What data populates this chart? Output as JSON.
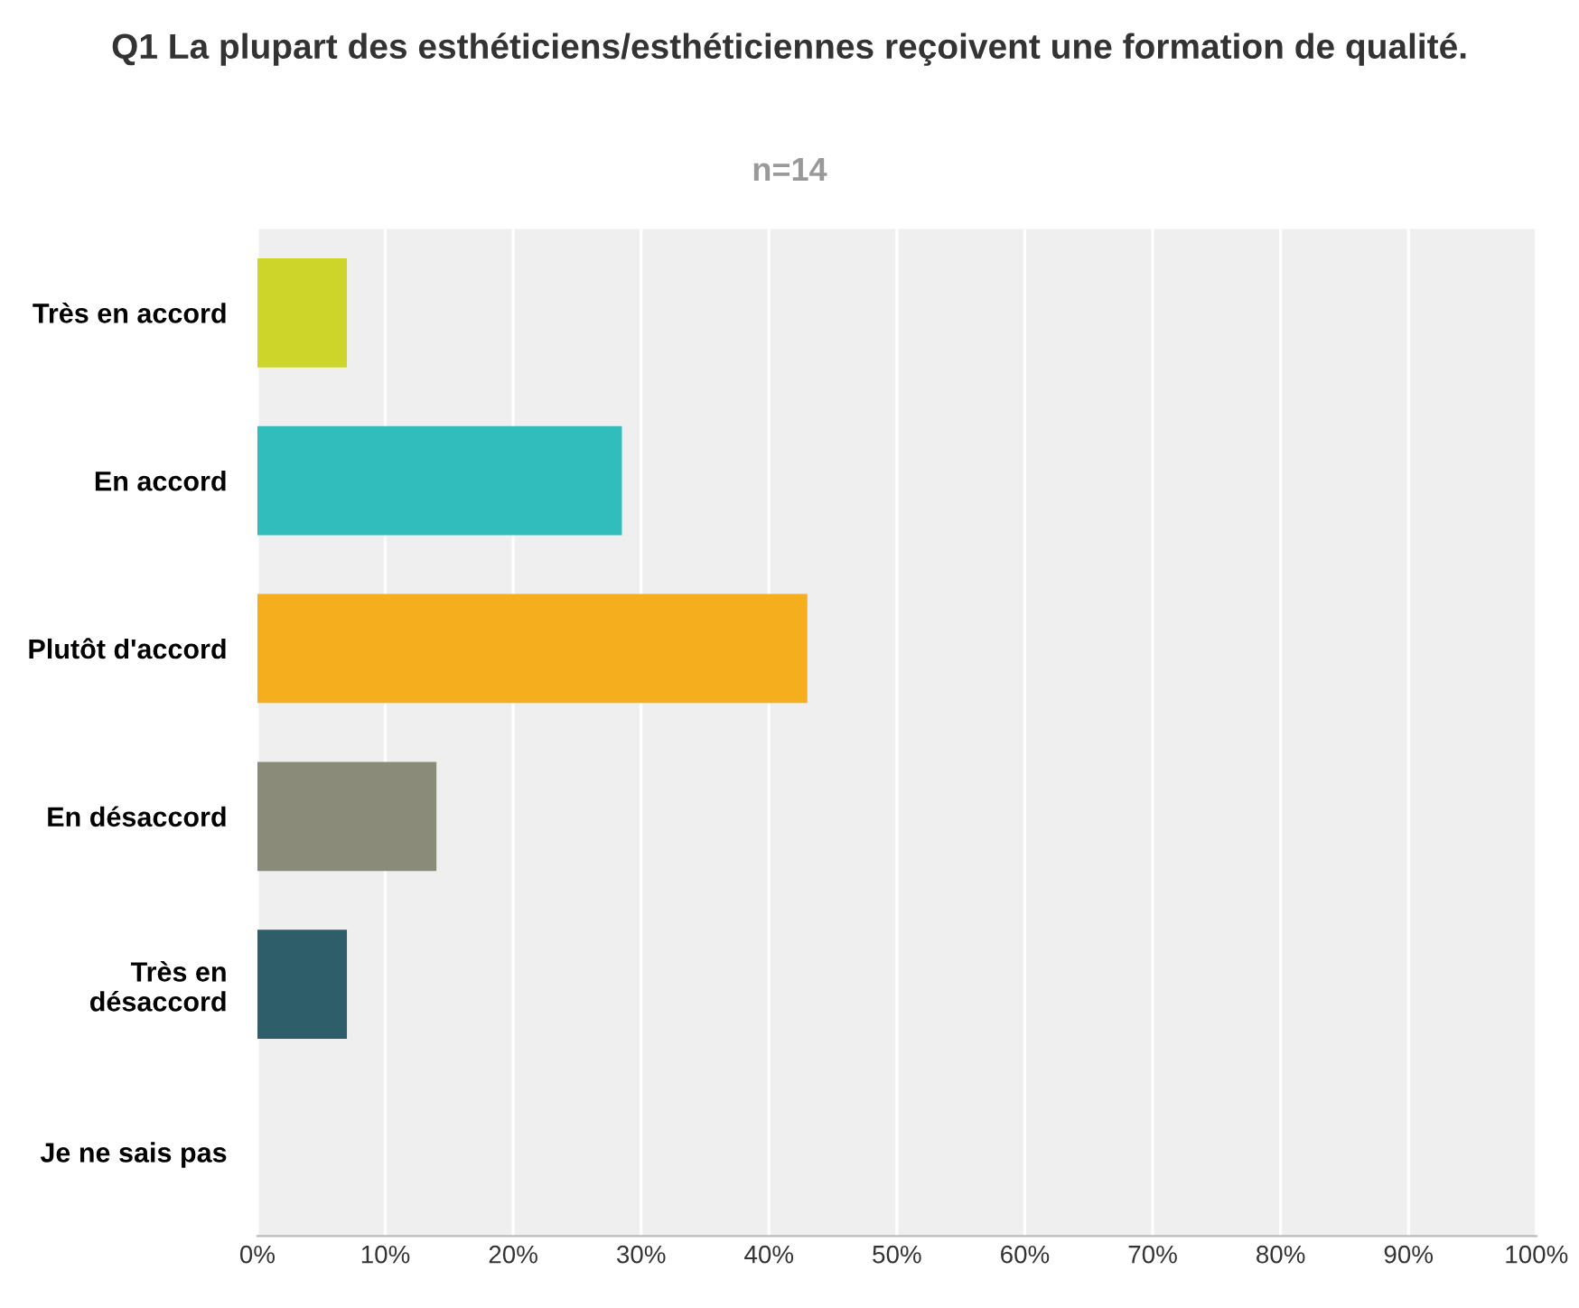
{
  "chart_data": {
    "type": "bar",
    "orientation": "horizontal",
    "title": "Q1 La plupart des esthéticiens/esthéticiennes reçoivent une formation de qualité.",
    "subtitle": "n=14",
    "categories": [
      "Très en accord",
      "En accord",
      "Plutôt d'accord",
      "En désaccord",
      "Très en\ndésaccord",
      "Je ne sais pas"
    ],
    "values": [
      7,
      28.5,
      43,
      14,
      7,
      0
    ],
    "colors": [
      "#cdd52a",
      "#32bdbd",
      "#f5ae1e",
      "#8a8b79",
      "#2e5e6a",
      "#999999"
    ],
    "xlim": [
      0,
      100
    ],
    "xticks": [
      {
        "value": 0,
        "label": "0%"
      },
      {
        "value": 10,
        "label": "10%"
      },
      {
        "value": 20,
        "label": "20%"
      },
      {
        "value": 30,
        "label": "30%"
      },
      {
        "value": 40,
        "label": "40%"
      },
      {
        "value": 50,
        "label": "50%"
      },
      {
        "value": 60,
        "label": "60%"
      },
      {
        "value": 70,
        "label": "70%"
      },
      {
        "value": 80,
        "label": "80%"
      },
      {
        "value": 90,
        "label": "90%"
      },
      {
        "value": 100,
        "label": "100%"
      }
    ],
    "grid": "x",
    "legend": false
  }
}
